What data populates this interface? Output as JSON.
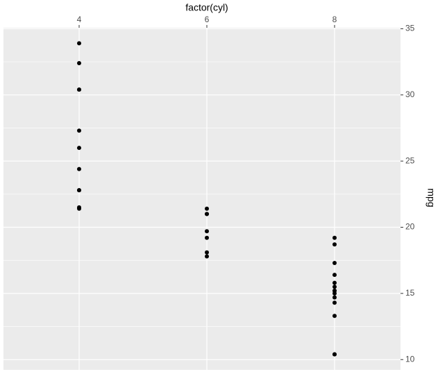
{
  "chart_data": {
    "type": "scatter",
    "x_label": "factor(cyl)",
    "y_label": "mpg",
    "categories": [
      "4",
      "6",
      "8"
    ],
    "series": [
      {
        "color": "#000000",
        "x": [
          "6",
          "6",
          "4",
          "6",
          "8",
          "6",
          "8",
          "4",
          "4",
          "6",
          "6",
          "8",
          "8",
          "8",
          "8",
          "8",
          "8",
          "4",
          "4",
          "4",
          "4",
          "8",
          "8",
          "8",
          "8",
          "4",
          "4",
          "4",
          "8",
          "6",
          "8",
          "4"
        ],
        "values": [
          21.0,
          21.0,
          22.8,
          21.4,
          18.7,
          18.1,
          14.3,
          24.4,
          22.8,
          19.2,
          17.8,
          16.4,
          17.3,
          15.2,
          10.4,
          10.4,
          14.7,
          32.4,
          30.4,
          33.9,
          21.5,
          15.5,
          15.2,
          13.3,
          19.2,
          27.3,
          26.0,
          30.4,
          15.8,
          19.7,
          15.0,
          21.4
        ]
      }
    ],
    "ylim": [
      9.225,
      35.075
    ],
    "yticks": [
      10,
      15,
      20,
      25,
      30,
      35
    ],
    "yminorticks": [
      12.5,
      17.5,
      22.5,
      27.5,
      32.5
    ],
    "grid": true,
    "x_axis_position": "top",
    "y_axis_position": "right",
    "panel_color": "#ebebeb"
  }
}
